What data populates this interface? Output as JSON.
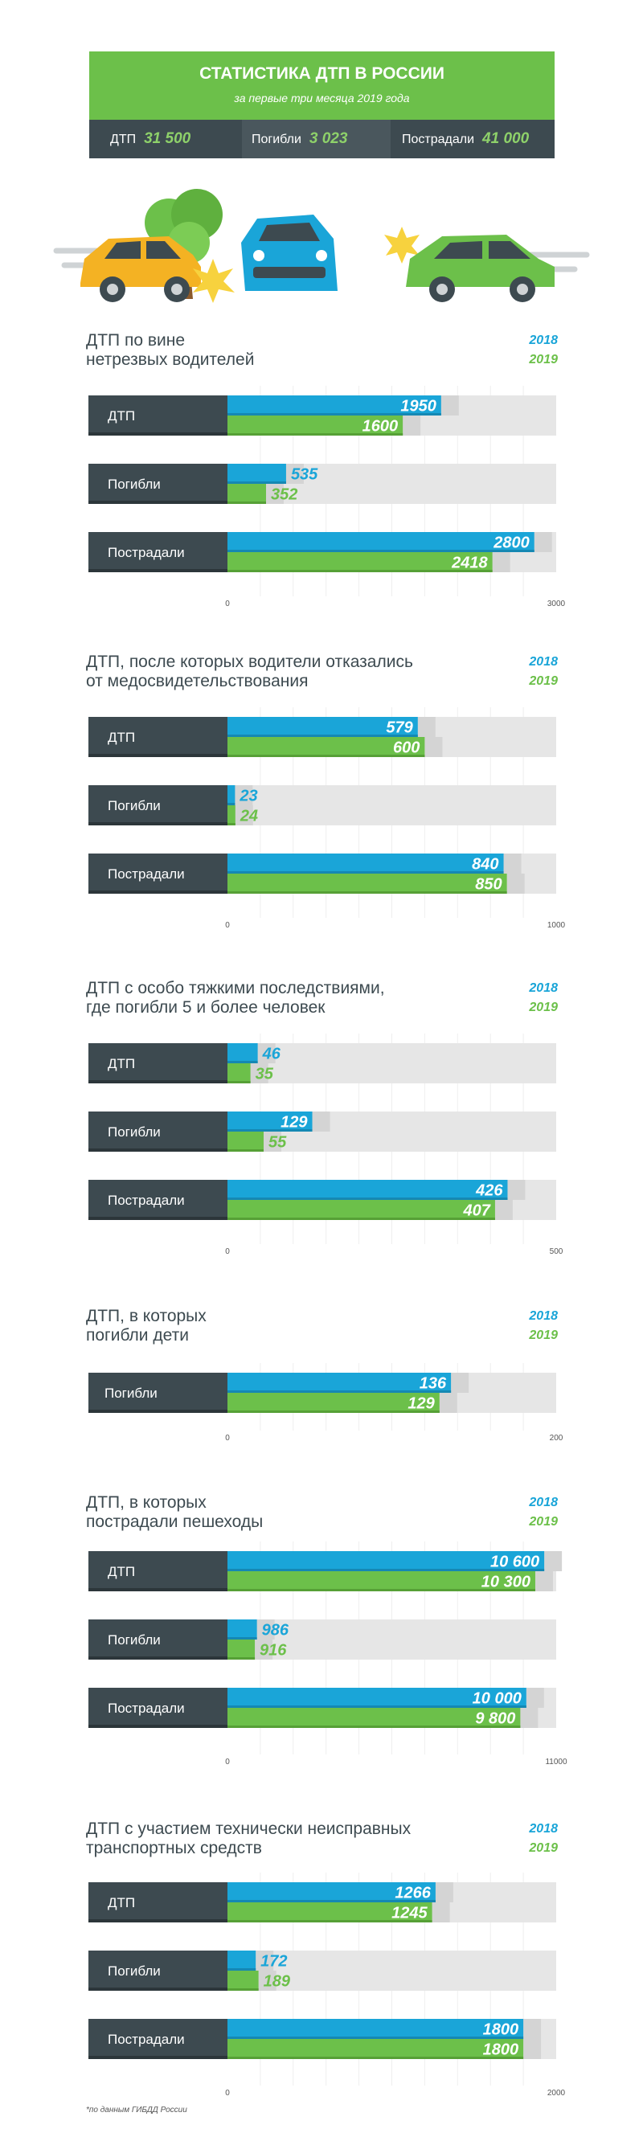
{
  "header": {
    "title": "СТАТИСТИКА ДТП В РОССИИ",
    "subtitle": "за первые три месяца 2019 года",
    "stats": [
      {
        "label": "ДТП",
        "value": "31 500"
      },
      {
        "label": "Погибли",
        "value": "3 023"
      },
      {
        "label": "Пострадали",
        "value": "41 000"
      }
    ]
  },
  "colors": {
    "blue_2018": "#1aa5d8",
    "green_2019": "#6cc04a",
    "label_bg": "#3d4a50",
    "track": "#e6e6e6",
    "header_green": "#6cc04a"
  },
  "chart_data": [
    {
      "type": "bar",
      "title": "ДТП по вине\nнетрезвых водителей",
      "legend": [
        "2018",
        "2019"
      ],
      "categories": [
        "ДТП",
        "Погибли",
        "Пострадали"
      ],
      "series": [
        {
          "name": "2018",
          "values": [
            1950,
            535,
            2800
          ],
          "labels": [
            "1950",
            "535",
            "2800"
          ]
        },
        {
          "name": "2019",
          "values": [
            1600,
            352,
            2418
          ],
          "labels": [
            "1600",
            "352",
            "2418"
          ]
        }
      ],
      "xlim": [
        0,
        3000
      ],
      "ticks": [
        "0",
        "3000"
      ]
    },
    {
      "type": "bar",
      "title": "ДТП, после которых водители отказались\nот медосвидетельствования",
      "legend": [
        "2018",
        "2019"
      ],
      "categories": [
        "ДТП",
        "Погибли",
        "Пострадали"
      ],
      "series": [
        {
          "name": "2018",
          "values": [
            579,
            23,
            840
          ],
          "labels": [
            "579",
            "23",
            "840"
          ]
        },
        {
          "name": "2019",
          "values": [
            600,
            24,
            850
          ],
          "labels": [
            "600",
            "24",
            "850"
          ]
        }
      ],
      "xlim": [
        0,
        1000
      ],
      "ticks": [
        "0",
        "1000"
      ]
    },
    {
      "type": "bar",
      "title": "ДТП с особо тяжкими последствиями,\nгде погибли 5 и более человек",
      "legend": [
        "2018",
        "2019"
      ],
      "categories": [
        "ДТП",
        "Погибли",
        "Пострадали"
      ],
      "series": [
        {
          "name": "2018",
          "values": [
            46,
            129,
            426
          ],
          "labels": [
            "46",
            "129",
            "426"
          ]
        },
        {
          "name": "2019",
          "values": [
            35,
            55,
            407
          ],
          "labels": [
            "35",
            "55",
            "407"
          ]
        }
      ],
      "xlim": [
        0,
        500
      ],
      "ticks": [
        "0",
        "500"
      ]
    },
    {
      "type": "bar",
      "title": "ДТП, в которых\nпогибли дети",
      "legend": [
        "2018",
        "2019"
      ],
      "categories": [
        "Погибли"
      ],
      "series": [
        {
          "name": "2018",
          "values": [
            136
          ],
          "labels": [
            "136"
          ]
        },
        {
          "name": "2019",
          "values": [
            129
          ],
          "labels": [
            "129"
          ]
        }
      ],
      "xlim": [
        0,
        200
      ],
      "ticks": [
        "0",
        "200"
      ]
    },
    {
      "type": "bar",
      "title": "ДТП, в которых\nпострадали пешеходы",
      "legend": [
        "2018",
        "2019"
      ],
      "categories": [
        "ДТП",
        "Погибли",
        "Пострадали"
      ],
      "series": [
        {
          "name": "2018",
          "values": [
            10600,
            986,
            10000
          ],
          "labels": [
            "10 600",
            "986",
            "10 000"
          ]
        },
        {
          "name": "2019",
          "values": [
            10300,
            916,
            9800
          ],
          "labels": [
            "10 300",
            "916",
            "9 800"
          ]
        }
      ],
      "xlim": [
        0,
        11000
      ],
      "ticks": [
        "0",
        "11000"
      ]
    },
    {
      "type": "bar",
      "title": "ДТП с участием технически неисправных\nтранспортных средств",
      "legend": [
        "2018",
        "2019"
      ],
      "categories": [
        "ДТП",
        "Погибли",
        "Пострадали"
      ],
      "series": [
        {
          "name": "2018",
          "values": [
            1266,
            172,
            1800
          ],
          "labels": [
            "1266",
            "172",
            "1800"
          ]
        },
        {
          "name": "2019",
          "values": [
            1245,
            189,
            1800
          ],
          "labels": [
            "1245",
            "189",
            "1800"
          ]
        }
      ],
      "xlim": [
        0,
        2000
      ],
      "ticks": [
        "0",
        "2000"
      ]
    }
  ],
  "footnote": "*по данным ГИБДД России"
}
